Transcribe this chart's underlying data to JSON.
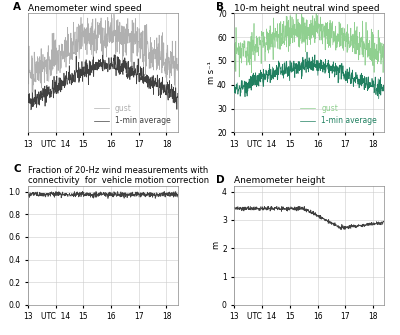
{
  "title_A": "Anemometer wind speed",
  "title_B": "10-m height neutral wind speed",
  "title_C": "Fraction of 20-Hz wind measurements with\nconnectivity  for  vehicle motion correction",
  "title_D": "Anemometer height",
  "ylabel_B": "m s⁻¹",
  "ylabel_D": "m",
  "xticks": [
    13,
    14,
    15,
    16,
    17,
    18
  ],
  "xlim": [
    13,
    18.4
  ],
  "ylim_A": [
    15,
    52
  ],
  "ylim_B": [
    20,
    70
  ],
  "ylim_C": [
    0.0,
    1.05
  ],
  "ylim_D": [
    0,
    4.2
  ],
  "yticks_B": [
    20,
    30,
    40,
    50,
    60,
    70
  ],
  "yticks_C": [
    0.0,
    0.2,
    0.4,
    0.6,
    0.8,
    1.0
  ],
  "yticks_D": [
    0,
    1,
    2,
    3,
    4
  ],
  "color_gust_A": "#b0b0b0",
  "color_avg_A": "#404040",
  "color_gust_B": "#90d090",
  "color_avg_B": "#208060",
  "color_C": "#404040",
  "color_D": "#404040",
  "label_gust": "gust",
  "label_avg": "1-min average",
  "panel_labels": [
    "A",
    "B",
    "C",
    "D"
  ],
  "n_points": 650,
  "seed": 42
}
